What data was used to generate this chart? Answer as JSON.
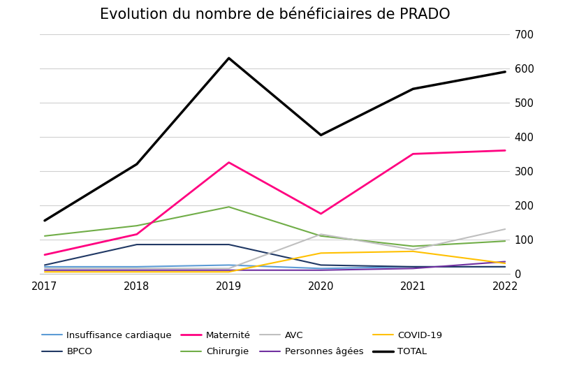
{
  "title": "Evolution du nombre de bénéficiaires de PRADO",
  "years": [
    2017,
    2018,
    2019,
    2020,
    2021,
    2022
  ],
  "series": {
    "Insuffisance cardiaque": {
      "values": [
        20,
        20,
        25,
        15,
        20,
        20
      ],
      "color": "#5B9BD5",
      "linewidth": 1.5,
      "zorder": 3
    },
    "BPCO": {
      "values": [
        25,
        85,
        85,
        25,
        20,
        20
      ],
      "color": "#203864",
      "linewidth": 1.5,
      "zorder": 3
    },
    "Maternité": {
      "values": [
        55,
        115,
        325,
        175,
        350,
        360
      ],
      "color": "#FF0080",
      "linewidth": 2.0,
      "zorder": 4
    },
    "Chirurgie": {
      "values": [
        110,
        140,
        195,
        110,
        80,
        95
      ],
      "color": "#70AD47",
      "linewidth": 1.5,
      "zorder": 3
    },
    "AVC": {
      "values": [
        15,
        15,
        15,
        115,
        70,
        130
      ],
      "color": "#BFBFBF",
      "linewidth": 1.5,
      "zorder": 3
    },
    "Personnes âgées": {
      "values": [
        10,
        10,
        10,
        10,
        15,
        35
      ],
      "color": "#7030A0",
      "linewidth": 1.5,
      "zorder": 3
    },
    "COVID-19": {
      "values": [
        5,
        5,
        5,
        60,
        65,
        30
      ],
      "color": "#FFC000",
      "linewidth": 1.5,
      "zorder": 3
    },
    "TOTAL": {
      "values": [
        155,
        320,
        630,
        405,
        540,
        590
      ],
      "color": "#000000",
      "linewidth": 2.5,
      "zorder": 5
    }
  },
  "ylim": [
    0,
    700
  ],
  "yticks": [
    0,
    100,
    200,
    300,
    400,
    500,
    600,
    700
  ],
  "background_color": "#FFFFFF",
  "title_fontsize": 15,
  "legend_fontsize": 9.5,
  "tick_fontsize": 10.5,
  "grid_color": "#D0D0D0",
  "legend_ncol": 4,
  "legend_order": [
    "Insuffisance cardiaque",
    "BPCO",
    "Maternité",
    "Chirurgie",
    "AVC",
    "Personnes âgées",
    "COVID-19",
    "TOTAL"
  ]
}
